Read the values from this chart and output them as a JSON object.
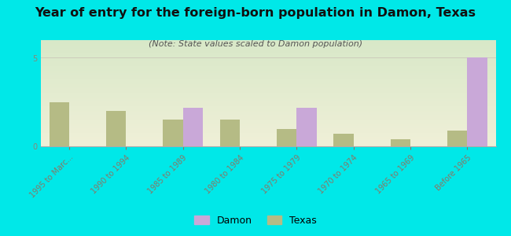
{
  "title": "Year of entry for the foreign-born population in Damon, Texas",
  "subtitle": "(Note: State values scaled to Damon population)",
  "categories": [
    "1995 to Marc...",
    "1990 to 1994",
    "1985 to 1989",
    "1980 to 1984",
    "1975 to 1979",
    "1970 to 1974",
    "1965 to 1969",
    "Before 1965"
  ],
  "damon_values": [
    0,
    0,
    2.2,
    0,
    2.2,
    0,
    0,
    5.0
  ],
  "texas_values": [
    2.5,
    2.0,
    1.5,
    1.5,
    1.0,
    0.7,
    0.4,
    0.9
  ],
  "damon_color": "#c9a8d8",
  "texas_color": "#b5bb85",
  "background_color": "#00e8e8",
  "ylim": [
    0,
    6
  ],
  "yticks": [
    0,
    5
  ],
  "bar_width": 0.35,
  "title_fontsize": 11.5,
  "subtitle_fontsize": 8,
  "tick_fontsize": 7,
  "legend_damon": "Damon",
  "legend_texas": "Texas"
}
